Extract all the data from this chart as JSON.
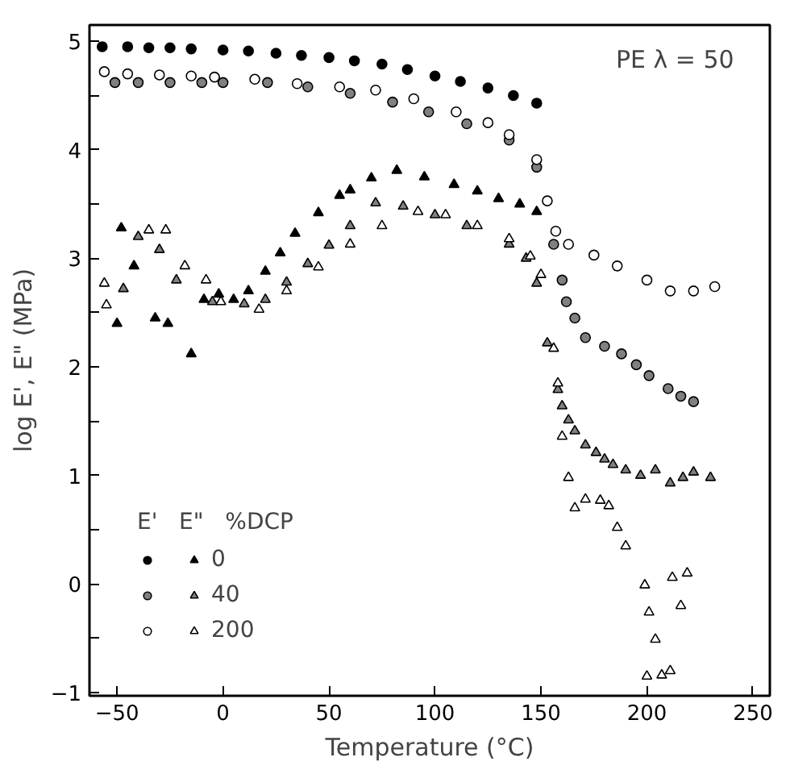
{
  "chart_data": {
    "type": "scatter",
    "xlabel": "Temperature (°C)",
    "ylabel": "log E', E\" (MPa)",
    "annotations": [
      "PE   λ = 50"
    ],
    "legend_title": "E'   E\"   %DCP",
    "legend": "bottom left",
    "xlim": [
      -63,
      258
    ],
    "ylim": [
      -1.03,
      5.15
    ],
    "xticks": [
      -50,
      0,
      50,
      100,
      150,
      200,
      250
    ],
    "yticks": [
      -1,
      {
        "value": -0.5,
        "label": null
      },
      0,
      {
        "value": 0.5,
        "label": null
      },
      1,
      {
        "value": 1.5,
        "label": null
      },
      2,
      {
        "value": 2.5,
        "label": null
      },
      3,
      {
        "value": 3.5,
        "label": null
      },
      4,
      {
        "value": 4.5,
        "label": null
      },
      5
    ],
    "grid": false,
    "series": [
      {
        "marker": "circle",
        "color": "#000000",
        "x": [
          -57,
          -45,
          -35,
          -25,
          -15,
          0,
          12,
          25,
          37,
          50,
          62,
          75,
          87,
          100,
          112,
          125,
          137,
          148
        ],
        "values": [
          4.95,
          4.95,
          4.94,
          4.94,
          4.93,
          4.92,
          4.91,
          4.89,
          4.87,
          4.85,
          4.82,
          4.79,
          4.74,
          4.68,
          4.63,
          4.57,
          4.5,
          4.43
        ]
      },
      {
        "marker": "circle",
        "color": "#808080",
        "x": [
          -51,
          -40,
          -25,
          -10,
          0,
          21,
          40,
          60,
          80,
          97,
          115,
          135,
          148,
          156,
          160,
          162,
          166,
          171,
          180,
          188,
          195,
          201,
          210,
          216,
          222
        ],
        "values": [
          4.62,
          4.62,
          4.62,
          4.62,
          4.62,
          4.62,
          4.58,
          4.52,
          4.44,
          4.35,
          4.24,
          4.09,
          3.84,
          3.13,
          2.8,
          2.6,
          2.45,
          2.27,
          2.19,
          2.12,
          2.02,
          1.92,
          1.8,
          1.73,
          1.68
        ]
      },
      {
        "marker": "circle",
        "color": "#ffffff",
        "x": [
          -56,
          -45,
          -30,
          -15,
          -4,
          15,
          35,
          55,
          72,
          90,
          110,
          125,
          135,
          148,
          153,
          157,
          163,
          175,
          186,
          200,
          211,
          222,
          232
        ],
        "values": [
          4.72,
          4.7,
          4.69,
          4.68,
          4.67,
          4.65,
          4.61,
          4.58,
          4.55,
          4.47,
          4.35,
          4.25,
          4.14,
          3.91,
          3.53,
          3.25,
          3.13,
          3.03,
          2.93,
          2.8,
          2.7,
          2.7,
          2.74
        ]
      },
      {
        "name": "0",
        "marker": "triangle",
        "color": "#000000",
        "x": [
          -48,
          -42,
          -32,
          -50,
          -26,
          -15,
          -9,
          -2,
          5,
          12,
          20,
          27,
          34,
          45,
          55,
          60,
          70,
          82,
          95,
          109,
          120,
          130,
          140,
          148
        ],
        "values": [
          3.28,
          2.93,
          2.45,
          2.4,
          2.4,
          2.12,
          2.62,
          2.67,
          2.62,
          2.7,
          2.88,
          3.05,
          3.23,
          3.42,
          3.58,
          3.63,
          3.74,
          3.81,
          3.75,
          3.68,
          3.62,
          3.55,
          3.5,
          3.43
        ]
      },
      {
        "name": "40",
        "marker": "triangle",
        "color": "#808080",
        "x": [
          -47,
          -40,
          -30,
          -22,
          -5,
          10,
          20,
          30,
          40,
          50,
          60,
          72,
          85,
          100,
          115,
          135,
          143,
          148,
          153,
          158,
          160,
          163,
          166,
          171,
          176,
          180,
          184,
          190,
          197,
          204,
          211,
          217,
          222,
          230
        ],
        "values": [
          2.72,
          3.2,
          3.08,
          2.8,
          2.6,
          2.58,
          2.62,
          2.78,
          2.95,
          3.12,
          3.3,
          3.51,
          3.48,
          3.4,
          3.3,
          3.13,
          3.0,
          2.77,
          2.22,
          1.79,
          1.64,
          1.51,
          1.41,
          1.28,
          1.21,
          1.15,
          1.1,
          1.05,
          1.0,
          1.05,
          0.93,
          0.98,
          1.03,
          0.98
        ]
      },
      {
        "name": "200",
        "marker": "triangle",
        "color": "#ffffff",
        "x": [
          -56,
          -55,
          -35,
          -27,
          -18,
          -8,
          -1,
          17,
          30,
          45,
          60,
          75,
          92,
          105,
          120,
          135,
          145,
          150,
          156,
          158,
          160,
          163,
          166,
          171,
          178,
          182,
          186,
          190,
          199,
          201,
          204,
          200,
          207,
          211,
          212,
          216,
          219
        ],
        "values": [
          2.77,
          2.57,
          3.26,
          3.26,
          2.93,
          2.8,
          2.6,
          2.53,
          2.7,
          2.92,
          3.13,
          3.3,
          3.43,
          3.4,
          3.3,
          3.18,
          3.02,
          2.85,
          2.17,
          1.85,
          1.36,
          0.98,
          0.7,
          0.78,
          0.77,
          0.72,
          0.52,
          0.35,
          -0.01,
          -0.26,
          -0.51,
          -0.85,
          -0.84,
          -0.8,
          0.06,
          -0.2,
          0.1
        ]
      }
    ]
  }
}
